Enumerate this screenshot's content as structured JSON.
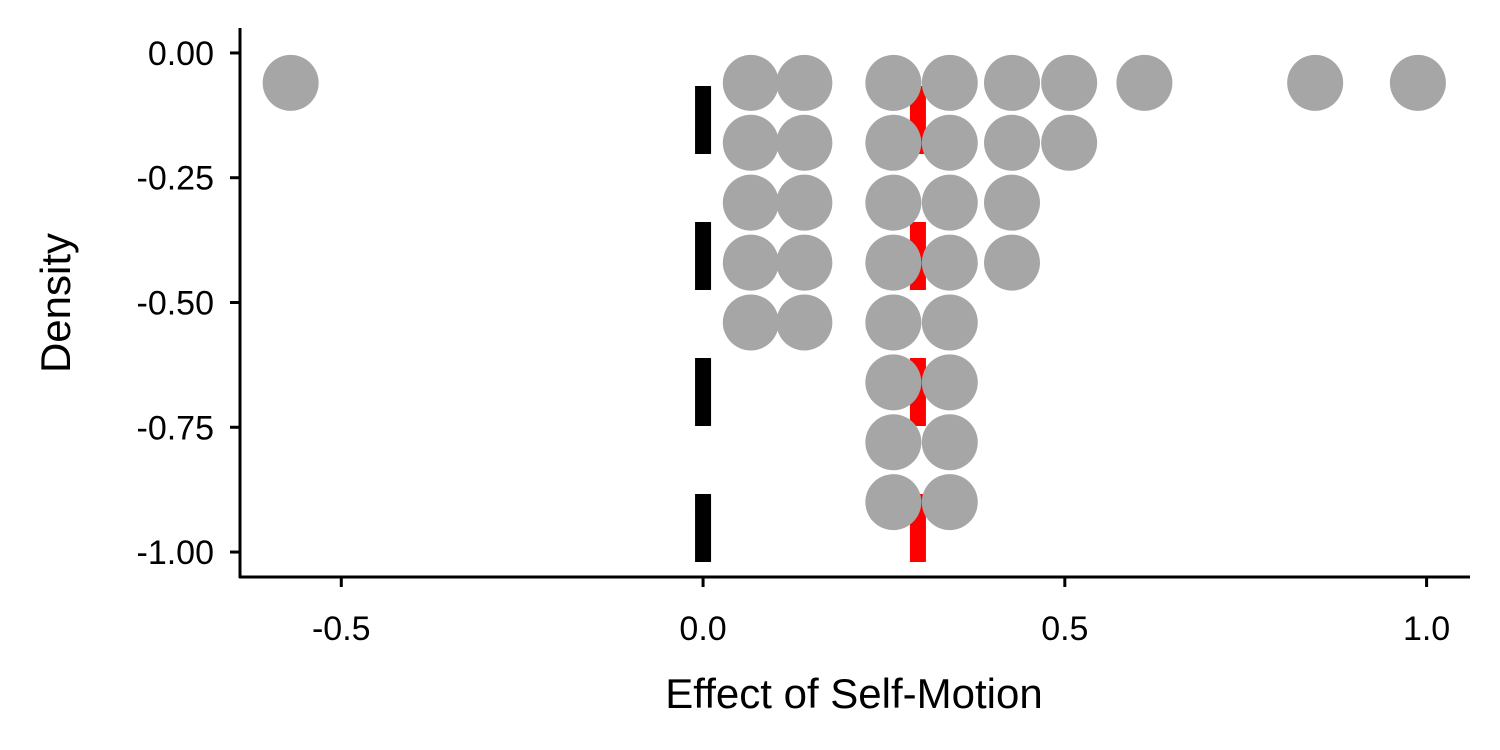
{
  "chart_data": {
    "type": "scatter",
    "subtype": "dotplot",
    "title": "",
    "xlabel": "Effect of Self-Motion",
    "ylabel": "Density",
    "xlim": [
      -0.64,
      1.06
    ],
    "ylim": [
      -1.05,
      0.05
    ],
    "x_ticks": [
      -0.5,
      0.0,
      0.5,
      1.0
    ],
    "x_tick_labels": [
      "-0.5",
      "0.0",
      "0.5",
      "1.0"
    ],
    "y_ticks": [
      0.0,
      -0.25,
      -0.5,
      -0.75,
      -1.0
    ],
    "y_tick_labels": [
      "0.00",
      "-0.25",
      "-0.50",
      "-0.75",
      "-1.00"
    ],
    "grid": false,
    "legend": "none",
    "dot_color": "#a6a6a6",
    "points": [
      {
        "x": -0.57,
        "y": -0.06
      },
      {
        "x": 0.066,
        "y": -0.06
      },
      {
        "x": 0.066,
        "y": -0.18
      },
      {
        "x": 0.066,
        "y": -0.3
      },
      {
        "x": 0.066,
        "y": -0.42
      },
      {
        "x": 0.066,
        "y": -0.54
      },
      {
        "x": 0.14,
        "y": -0.06
      },
      {
        "x": 0.14,
        "y": -0.18
      },
      {
        "x": 0.14,
        "y": -0.3
      },
      {
        "x": 0.14,
        "y": -0.42
      },
      {
        "x": 0.14,
        "y": -0.54
      },
      {
        "x": 0.263,
        "y": -0.06
      },
      {
        "x": 0.263,
        "y": -0.18
      },
      {
        "x": 0.263,
        "y": -0.3
      },
      {
        "x": 0.263,
        "y": -0.42
      },
      {
        "x": 0.263,
        "y": -0.54
      },
      {
        "x": 0.263,
        "y": -0.66
      },
      {
        "x": 0.263,
        "y": -0.78
      },
      {
        "x": 0.263,
        "y": -0.9
      },
      {
        "x": 0.341,
        "y": -0.06
      },
      {
        "x": 0.341,
        "y": -0.18
      },
      {
        "x": 0.341,
        "y": -0.3
      },
      {
        "x": 0.341,
        "y": -0.42
      },
      {
        "x": 0.341,
        "y": -0.54
      },
      {
        "x": 0.341,
        "y": -0.66
      },
      {
        "x": 0.341,
        "y": -0.78
      },
      {
        "x": 0.341,
        "y": -0.9
      },
      {
        "x": 0.427,
        "y": -0.06
      },
      {
        "x": 0.427,
        "y": -0.18
      },
      {
        "x": 0.427,
        "y": -0.3
      },
      {
        "x": 0.427,
        "y": -0.42
      },
      {
        "x": 0.506,
        "y": -0.06
      },
      {
        "x": 0.506,
        "y": -0.18
      },
      {
        "x": 0.61,
        "y": -0.06
      },
      {
        "x": 0.846,
        "y": -0.06
      },
      {
        "x": 0.988,
        "y": -0.06
      }
    ],
    "reference_lines": [
      {
        "x": 0.0,
        "color": "#000000",
        "style": "dashed"
      },
      {
        "x": 0.297,
        "color": "#ff0000",
        "style": "dashed"
      }
    ]
  }
}
